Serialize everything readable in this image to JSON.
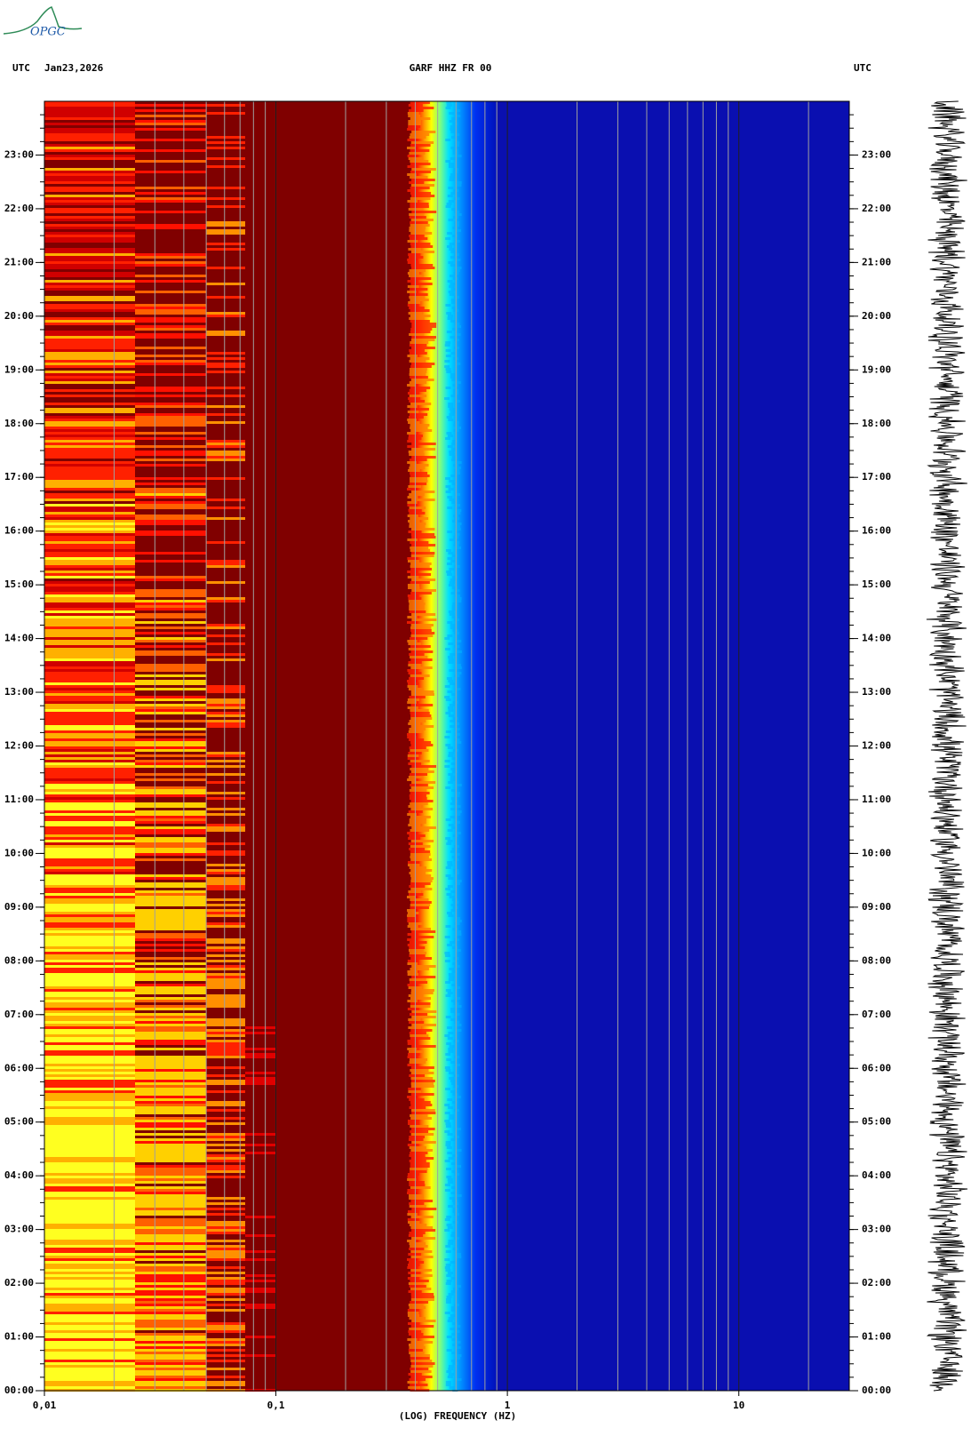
{
  "logo": "OPGC",
  "chart_data": {
    "type": "spectrogram",
    "title": "GARF HHZ FR 00",
    "date": "Jan23,2026",
    "timezone_left": "UTC",
    "timezone_right": "UTC",
    "xlabel": "(LOG) FREQUENCY (HZ)",
    "xscale": "log",
    "xlim": [
      0.01,
      30
    ],
    "xticks": [
      {
        "value": 0.01,
        "label": "0,01"
      },
      {
        "value": 0.1,
        "label": "0,1"
      },
      1,
      10
    ],
    "ylim": [
      0,
      24
    ],
    "yticks": [
      {
        "value": 0,
        "label": "00:00"
      },
      {
        "value": 1,
        "label": "01:00"
      },
      {
        "value": 2,
        "label": "02:00"
      },
      {
        "value": 3,
        "label": "03:00"
      },
      {
        "value": 4,
        "label": "04:00"
      },
      {
        "value": 5,
        "label": "05:00"
      },
      {
        "value": 6,
        "label": "06:00"
      },
      {
        "value": 7,
        "label": "07:00"
      },
      {
        "value": 8,
        "label": "08:00"
      },
      {
        "value": 9,
        "label": "09:00"
      },
      {
        "value": 10,
        "label": "10:00"
      },
      {
        "value": 11,
        "label": "11:00"
      },
      {
        "value": 12,
        "label": "12:00"
      },
      {
        "value": 13,
        "label": "13:00"
      },
      {
        "value": 14,
        "label": "14:00"
      },
      {
        "value": 15,
        "label": "15:00"
      },
      {
        "value": 16,
        "label": "16:00"
      },
      {
        "value": 17,
        "label": "17:00"
      },
      {
        "value": 18,
        "label": "18:00"
      },
      {
        "value": 19,
        "label": "19:00"
      },
      {
        "value": 20,
        "label": "20:00"
      },
      {
        "value": 21,
        "label": "21:00"
      },
      {
        "value": 22,
        "label": "22:00"
      },
      {
        "value": 23,
        "label": "23:00"
      }
    ],
    "grid": true
  }
}
